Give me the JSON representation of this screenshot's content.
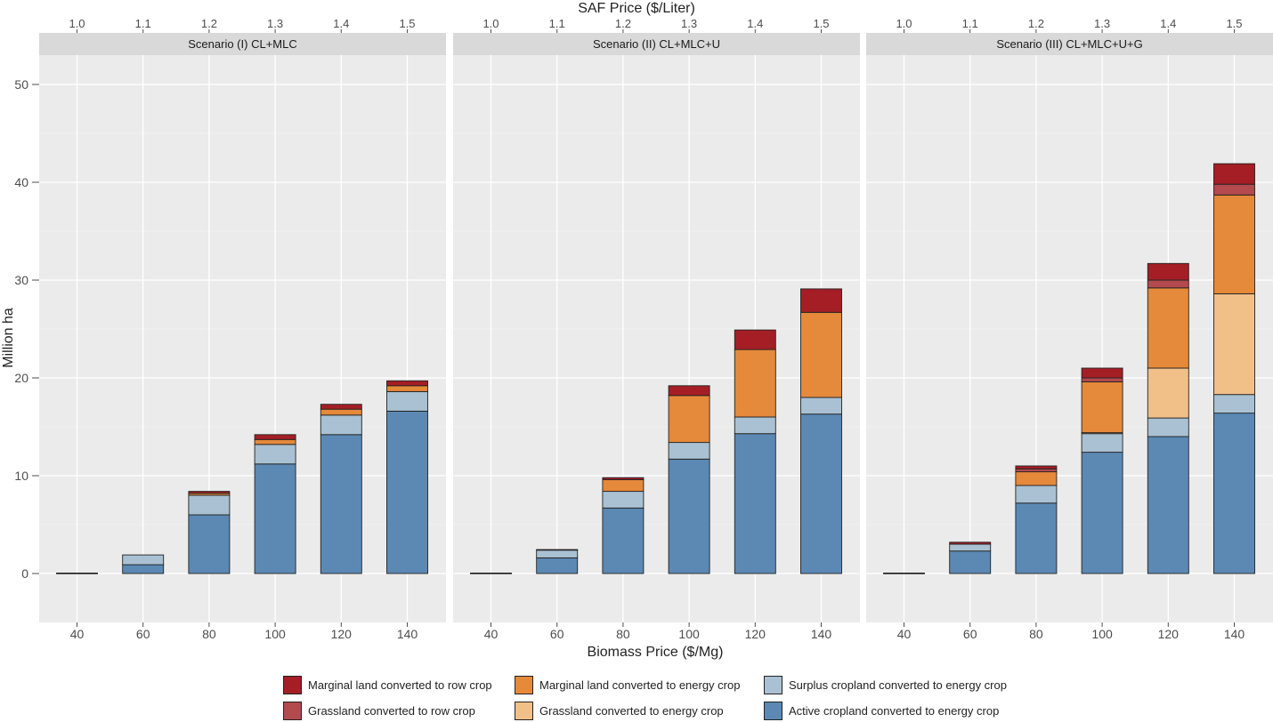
{
  "chart_data": {
    "type": "bar",
    "stacked": true,
    "top_axis_title": "SAF Price ($/Liter)",
    "top_ticks": [
      "1.0",
      "1.1",
      "1.2",
      "1.3",
      "1.4",
      "1.5"
    ],
    "xlabel": "Biomass Price ($/Mg)",
    "ylabel": "Million ha",
    "categories": [
      "40",
      "60",
      "80",
      "100",
      "120",
      "140"
    ],
    "ylim": [
      -5,
      53
    ],
    "yticks": [
      0,
      10,
      20,
      30,
      40,
      50
    ],
    "stack_order": [
      "active",
      "surplus",
      "grass_energy",
      "marginal_energy",
      "grass_row",
      "marginal_row"
    ],
    "legend": [
      {
        "key": "marginal_row",
        "label": "Marginal land converted to row crop",
        "color": "#A51E25"
      },
      {
        "key": "grass_row",
        "label": "Grassland converted to row crop",
        "color": "#B24A4E"
      },
      {
        "key": "marginal_energy",
        "label": "Marginal land converted to energy crop",
        "color": "#E5893A"
      },
      {
        "key": "grass_energy",
        "label": "Grassland converted to energy crop",
        "color": "#F0C088"
      },
      {
        "key": "surplus",
        "label": "Surplus cropland converted to energy crop",
        "color": "#A9C1D2"
      },
      {
        "key": "active",
        "label": "Active cropland converted to energy crop",
        "color": "#5B89B4"
      }
    ],
    "panels": [
      {
        "title": "Scenario (I) CL+MLC",
        "series": {
          "active": [
            0.05,
            0.9,
            6.0,
            11.2,
            14.2,
            16.6
          ],
          "surplus": [
            0,
            1.0,
            2.0,
            2.0,
            2.0,
            2.0
          ],
          "grass_energy": [
            0,
            0,
            0,
            0,
            0,
            0
          ],
          "marginal_energy": [
            0,
            0,
            0.2,
            0.5,
            0.6,
            0.6
          ],
          "grass_row": [
            0,
            0,
            0,
            0,
            0,
            0
          ],
          "marginal_row": [
            0,
            0,
            0.2,
            0.5,
            0.5,
            0.5
          ]
        }
      },
      {
        "title": "Scenario (II) CL+MLC+U",
        "series": {
          "active": [
            0.05,
            1.6,
            6.7,
            11.7,
            14.3,
            16.3
          ],
          "surplus": [
            0,
            0.8,
            1.7,
            1.7,
            1.7,
            1.7
          ],
          "grass_energy": [
            0,
            0,
            0,
            0,
            0,
            0
          ],
          "marginal_energy": [
            0,
            0,
            1.2,
            4.8,
            6.9,
            8.7
          ],
          "grass_row": [
            0,
            0,
            0,
            0,
            0,
            0
          ],
          "marginal_row": [
            0,
            0.05,
            0.2,
            1.0,
            2.0,
            2.4
          ]
        }
      },
      {
        "title": "Scenario (III) CL+MLC+U+G",
        "series": {
          "active": [
            0.05,
            2.3,
            7.2,
            12.4,
            14.0,
            16.4
          ],
          "surplus": [
            0,
            0.7,
            1.8,
            1.9,
            1.9,
            1.9
          ],
          "grass_energy": [
            0,
            0,
            0,
            0.1,
            5.1,
            10.3
          ],
          "marginal_energy": [
            0,
            0,
            1.4,
            5.2,
            8.2,
            10.1
          ],
          "grass_row": [
            0,
            0,
            0.3,
            0.4,
            0.8,
            1.1
          ],
          "marginal_row": [
            0,
            0.2,
            0.3,
            1.0,
            1.7,
            2.1
          ]
        }
      }
    ]
  }
}
